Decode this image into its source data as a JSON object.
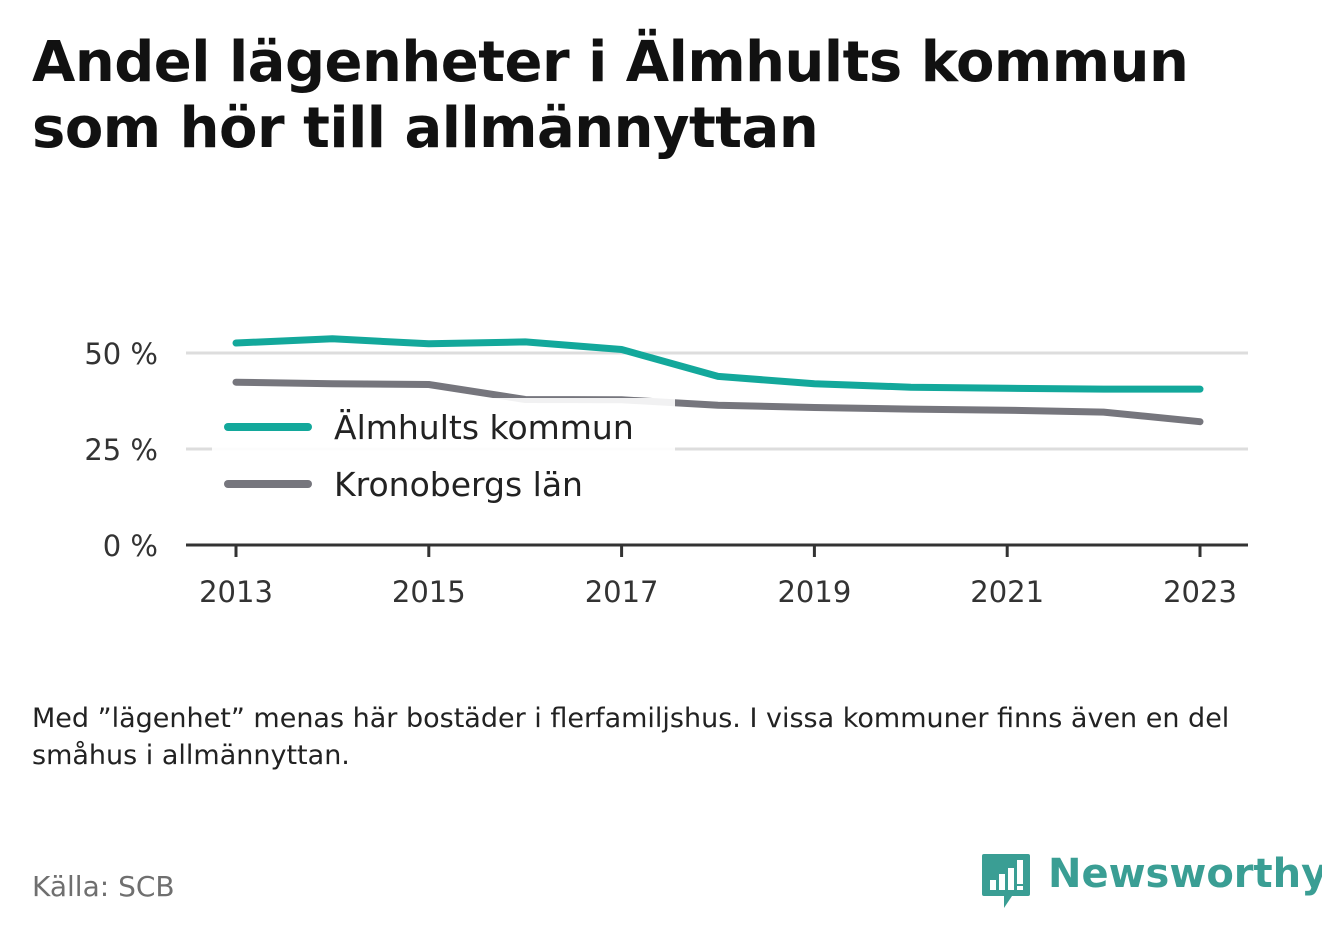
{
  "title_lines": [
    "Andel lägenheter i Älmhults kommun",
    "som hör till allmännyttan"
  ],
  "note": "Med ”lägenhet” menas här bostäder i flerfamiljshus. I vissa kommuner finns även en del småhus i allmännyttan.",
  "source": "Källa: SCB",
  "brand": {
    "name": "Newsworthy",
    "icon": "newsworthy-logo-icon",
    "color": "#3a9e94"
  },
  "chart_data": {
    "type": "line",
    "title": "Andel lägenheter i Älmhults kommun som hör till allmännyttan",
    "xlabel": "",
    "ylabel": "",
    "x": [
      2013,
      2014,
      2015,
      2016,
      2017,
      2018,
      2019,
      2020,
      2021,
      2022,
      2023
    ],
    "xticks": [
      2013,
      2015,
      2017,
      2019,
      2021,
      2023
    ],
    "xtick_labels": [
      "2013",
      "2015",
      "2017",
      "2019",
      "2021",
      "2023"
    ],
    "ylim": [
      0,
      50
    ],
    "yticks": [
      0,
      25,
      50
    ],
    "ytick_labels": [
      "0 %",
      "25 %",
      "50 %"
    ],
    "grid": true,
    "legend_placement": "center-left",
    "series": [
      {
        "name": "Älmhults kommun",
        "color": "#13a89b",
        "values": [
          52.6,
          53.7,
          52.4,
          52.9,
          50.9,
          43.9,
          42.0,
          41.1,
          40.8,
          40.6,
          40.6
        ]
      },
      {
        "name": "Kronobergs län",
        "color": "#76767d",
        "values": [
          42.4,
          42.0,
          41.8,
          37.9,
          37.8,
          36.4,
          35.8,
          35.4,
          35.1,
          34.6,
          32.1
        ]
      }
    ]
  }
}
